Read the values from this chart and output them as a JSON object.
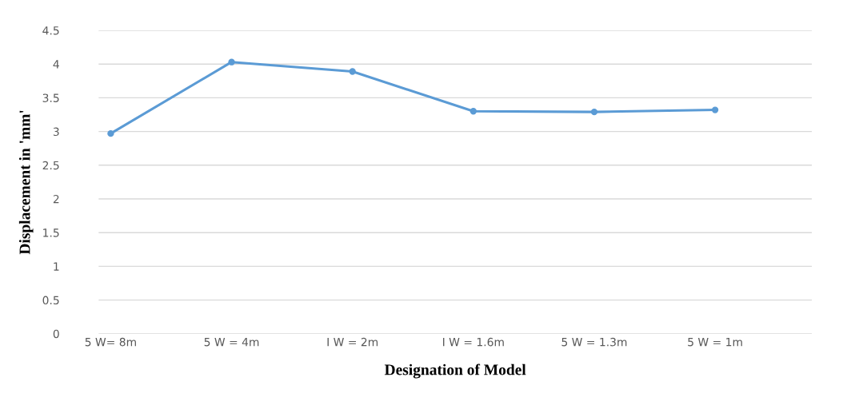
{
  "chart_data": {
    "type": "line",
    "xlabel": "Designation of Model",
    "ylabel": "Displacement in 'mm'",
    "categories": [
      "5 W= 8m",
      "5 W = 4m",
      "I W = 2m",
      "I W = 1.6m",
      "5 W = 1.3m",
      "5 W = 1m"
    ],
    "series": [
      {
        "color": "#5b9bd5",
        "values": [
          2.97,
          4.03,
          3.89,
          3.3,
          3.29,
          3.32
        ]
      }
    ],
    "ylim": [
      0,
      4.5
    ],
    "yticks": [
      0,
      0.5,
      1,
      1.5,
      2,
      2.5,
      3,
      3.5,
      4,
      4.5
    ],
    "grid": "y",
    "marker": "circle",
    "line_style": "solid"
  }
}
